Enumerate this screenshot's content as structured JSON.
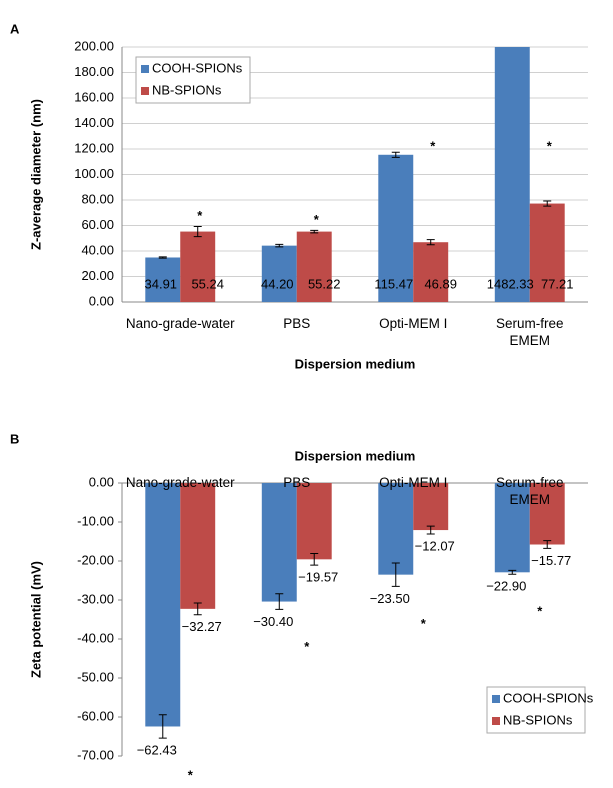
{
  "chart_data": [
    {
      "type": "bar",
      "panel_label": "A",
      "y_label": "Z-average diameter (nm)",
      "x_label": "Dispersion medium",
      "x_axis": "bottom",
      "categories": [
        "Nano-grade-water",
        "PBS",
        "Opti-MEM I",
        "Serum-free\nEMEM"
      ],
      "series": [
        {
          "name": "COOH-SPIONs",
          "color": "#4a7ebb",
          "values": [
            34.91,
            44.2,
            115.47,
            1482.33
          ],
          "value_labels": [
            "34.91",
            "44.20",
            "115.47",
            "1482.33"
          ],
          "errors": [
            0.5,
            1,
            2,
            null
          ]
        },
        {
          "name": "NB-SPIONs",
          "color": "#be4b48",
          "values": [
            55.24,
            55.22,
            46.89,
            77.21
          ],
          "value_labels": [
            "55.24",
            "55.22",
            "46.89",
            "77.21"
          ],
          "errors": [
            4,
            1,
            2,
            2
          ]
        }
      ],
      "significance": [
        "*",
        "*",
        "*",
        "*"
      ],
      "ylim": [
        0,
        200
      ],
      "yticks": [
        {
          "value": 0,
          "label": "0.00"
        },
        {
          "value": 20,
          "label": "20.00"
        },
        {
          "value": 40,
          "label": "40.00"
        },
        {
          "value": 60,
          "label": "60.00"
        },
        {
          "value": 80,
          "label": "80.00"
        },
        {
          "value": 100,
          "label": "100.00"
        },
        {
          "value": 120,
          "label": "120.00"
        },
        {
          "value": 140,
          "label": "140.00"
        },
        {
          "value": 160,
          "label": "160.00"
        },
        {
          "value": 180,
          "label": "180.00"
        },
        {
          "value": 200,
          "label": "200.00"
        }
      ],
      "grid": true,
      "legend": "top-left"
    },
    {
      "type": "bar",
      "panel_label": "B",
      "y_label": "Zeta potential (mV)",
      "x_label": "Dispersion medium",
      "x_axis": "top",
      "categories": [
        "Nano-grade-water",
        "PBS",
        "Opti-MEM I",
        "Serum-free\nEMEM"
      ],
      "series": [
        {
          "name": "COOH-SPIONs",
          "color": "#4a7ebb",
          "values": [
            -62.43,
            -30.4,
            -23.5,
            -22.9
          ],
          "value_labels": [
            "−62.43",
            "−30.40",
            "−23.50",
            "−22.90"
          ],
          "errors": [
            3,
            2,
            3,
            0.5
          ]
        },
        {
          "name": "NB-SPIONs",
          "color": "#be4b48",
          "values": [
            -32.27,
            -19.57,
            -12.07,
            -15.77
          ],
          "value_labels": [
            "−32.27",
            "−19.57",
            "−12.07",
            "−15.77"
          ],
          "errors": [
            1.5,
            1.5,
            1,
            1
          ]
        }
      ],
      "significance": [
        "*",
        "*",
        "*",
        "*"
      ],
      "ylim": [
        -70,
        0
      ],
      "yticks": [
        {
          "value": 0,
          "label": "0.00"
        },
        {
          "value": -10,
          "label": "-10.00"
        },
        {
          "value": -20,
          "label": "-20.00"
        },
        {
          "value": -30,
          "label": "-30.00"
        },
        {
          "value": -40,
          "label": "-40.00"
        },
        {
          "value": -50,
          "label": "-50.00"
        },
        {
          "value": -60,
          "label": "-60.00"
        },
        {
          "value": -70,
          "label": "-70.00"
        }
      ],
      "grid": false,
      "legend": "bottom-right"
    }
  ]
}
